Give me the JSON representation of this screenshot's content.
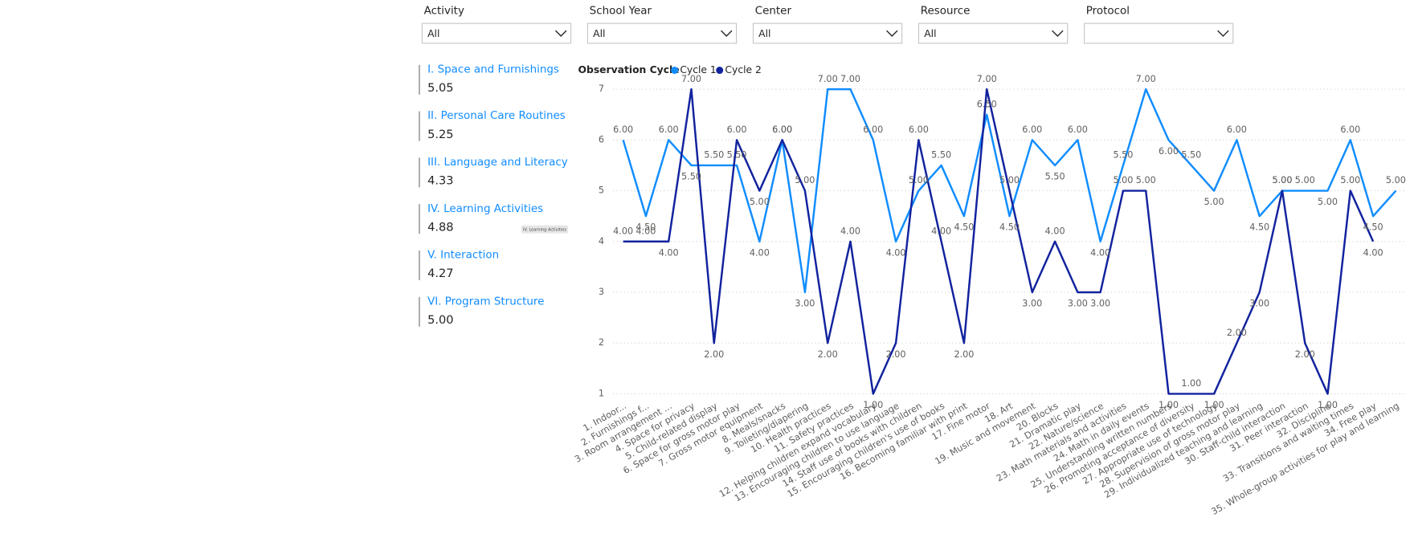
{
  "filters": [
    {
      "label": "Activity",
      "value": "All"
    },
    {
      "label": "School Year",
      "value": "All"
    },
    {
      "label": "Center",
      "value": "All"
    },
    {
      "label": "Resource",
      "value": "All"
    },
    {
      "label": "Protocol"
    }
  ],
  "cards": [
    {
      "title": "I. Space and Furnishings",
      "value": "5.05"
    },
    {
      "title": "II. Personal Care Routines",
      "value": "5.25"
    },
    {
      "title": "III. Language and Literacy",
      "value": "4.33"
    },
    {
      "title": "IV. Learning Activities",
      "value": "4.88"
    },
    {
      "title": "V. Interaction",
      "value": "4.27"
    },
    {
      "title": "VI. Program Structure",
      "value": "5.00"
    }
  ],
  "tooltip": "IV. Learning Activities",
  "chart_data": {
    "type": "line",
    "legend_title": "Observation Cycle",
    "categories": [
      "1. Indoor...",
      "2. Furnishings f...",
      "3. Room arrangement ...",
      "4. Space for privacy",
      "5. Child-related display",
      "6. Space for gross motor play",
      "7. Gross motor equipment",
      "8. Meals/snacks",
      "9. Toileting/diapering",
      "10. Health practices",
      "11. Safety practices",
      "12. Helping children expand vocabulary",
      "13. Encouraging children to use language",
      "14. Staff use of books with children",
      "15. Encouraging children's use of books",
      "16. Becoming familiar with print",
      "17. Fine motor",
      "18. Art",
      "19. Music and movement",
      "20. Blocks",
      "21. Dramatic play",
      "22. Nature/science",
      "23. Math materials and activities",
      "24. Math in daily events",
      "25. Understanding written numbers",
      "26. Promoting acceptance of diversity",
      "27. Appropriate use of technology",
      "28. Supervision of gross motor play",
      "29. Individualized teaching and learning",
      "30. Staff-child interaction",
      "31. Peer interaction",
      "32. Discipline",
      "33. Transitions and waiting times",
      "34. Free play",
      "35. Whole-group activities for play and learning"
    ],
    "series": [
      {
        "name": "Cycle 1",
        "color": "#118DFF",
        "values": [
          6,
          4.5,
          6,
          5.5,
          5.5,
          5.5,
          4,
          6,
          3,
          7,
          7,
          6,
          4,
          5,
          5.5,
          4.5,
          6.5,
          4.5,
          6,
          5.5,
          6,
          4,
          5.5,
          7,
          6,
          5.5,
          5,
          6,
          4.5,
          5,
          5,
          5,
          6,
          4.5,
          5
        ],
        "value_labels": [
          "6.00",
          "4.50",
          "6.00",
          "5.50",
          "5.50",
          "5.50",
          "4.00",
          "6.00",
          "3.00",
          "7.00",
          "7.00",
          "6.00",
          "4.00",
          "5.00",
          "5.50",
          "4.50",
          "6.50",
          "4.50",
          "6.00",
          "5.50",
          "6.00",
          "4.00",
          "5.50",
          "7.00",
          "6.00",
          "5.50",
          "5.00",
          "6.00",
          "4.50",
          "5.00",
          "5.00",
          "5.00",
          "6.00",
          "4.50",
          "5.00"
        ]
      },
      {
        "name": "Cycle 2",
        "color": "#12239E",
        "values": [
          4,
          4,
          4,
          7,
          2,
          6,
          5,
          6,
          5,
          2,
          4,
          1,
          2,
          6,
          4,
          2,
          7,
          5,
          3,
          4,
          3,
          3,
          5,
          5,
          1,
          1,
          1,
          2,
          3,
          5,
          2,
          1,
          5,
          4,
          null
        ],
        "value_labels": [
          "4.00",
          "4.00",
          "4.00",
          "7.00",
          "2.00",
          "6.00",
          "5.00",
          "6.00",
          "5.00",
          "2.00",
          "4.00",
          "1.00",
          "2.00",
          "6.00",
          "4.00",
          "2.00",
          "7.00",
          "5.00",
          "3.00",
          "4.00",
          "3.00",
          "3.00",
          "5.00",
          "5.00",
          "1.00",
          "1.00",
          "1.00",
          "2.00",
          "3.00",
          "5.00",
          "2.00",
          "1.00",
          "5.00",
          "4.00",
          null
        ]
      }
    ],
    "ylim": [
      1,
      7
    ],
    "yticks": [
      1,
      2,
      3,
      4,
      5,
      6,
      7
    ],
    "grid": true
  }
}
